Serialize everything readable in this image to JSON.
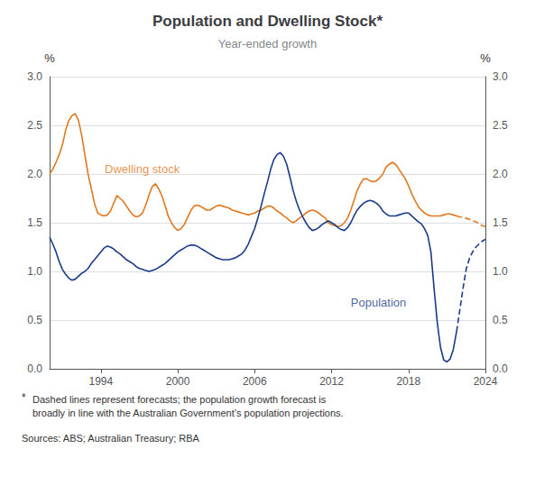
{
  "chart_data": {
    "type": "line",
    "title": "Population and Dwelling Stock*",
    "subtitle": "Year-ended growth",
    "ylabel": "%",
    "y2label": "%",
    "xlim": [
      1990,
      2024
    ],
    "xticks": [
      1994,
      2000,
      2006,
      2012,
      2018,
      2024
    ],
    "ylim": [
      0.0,
      3.0
    ],
    "yticks": [
      {
        "value": 0.0,
        "label": "0.0"
      },
      0.5,
      {
        "value": 1.0,
        "label": "1.0"
      },
      1.5,
      {
        "value": 2.0,
        "label": "2.0"
      },
      2.5,
      {
        "value": 3.0,
        "label": "3.0"
      }
    ],
    "y2lim": [
      0.0,
      3.0
    ],
    "y2ticks": [
      {
        "value": 0.0,
        "label": "0.0"
      },
      0.5,
      {
        "value": 1.0,
        "label": "1.0"
      },
      1.5,
      {
        "value": 2.0,
        "label": "2.0"
      },
      2.5,
      {
        "value": 3.0,
        "label": "3.0"
      }
    ],
    "grid": true,
    "series": [
      {
        "color": "#E07820",
        "line_style": "solid",
        "x": [
          1990,
          1990.25,
          1990.5,
          1990.75,
          1991,
          1991.25,
          1991.5,
          1991.75,
          1992,
          1992.25,
          1992.5,
          1992.75,
          1993,
          1993.25,
          1993.5,
          1993.75,
          1994,
          1994.25,
          1994.5,
          1994.75,
          1995,
          1995.25,
          1995.5,
          1995.75,
          1996,
          1996.25,
          1996.5,
          1996.75,
          1997,
          1997.25,
          1997.5,
          1997.75,
          1998,
          1998.25,
          1998.5,
          1998.75,
          1999,
          1999.25,
          1999.5,
          1999.75,
          2000,
          2000.25,
          2000.5,
          2000.75,
          2001,
          2001.25,
          2001.5,
          2001.75,
          2002,
          2002.25,
          2002.5,
          2002.75,
          2003,
          2003.25,
          2003.5,
          2003.75,
          2004,
          2004.25,
          2004.5,
          2004.75,
          2005,
          2005.25,
          2005.5,
          2005.75,
          2006,
          2006.25,
          2006.5,
          2006.75,
          2007,
          2007.25,
          2007.5,
          2007.75,
          2008,
          2008.25,
          2008.5,
          2008.75,
          2009,
          2009.25,
          2009.5,
          2009.75,
          2010,
          2010.25,
          2010.5,
          2010.75,
          2011,
          2011.25,
          2011.5,
          2011.75,
          2012,
          2012.25,
          2012.5,
          2012.75,
          2013,
          2013.25,
          2013.5,
          2013.75,
          2014,
          2014.25,
          2014.5,
          2014.75,
          2015,
          2015.25,
          2015.5,
          2015.75,
          2016,
          2016.25,
          2016.5,
          2016.75,
          2017,
          2017.25,
          2017.5,
          2017.75,
          2018,
          2018.25,
          2018.5,
          2018.75,
          2019,
          2019.25,
          2019.5,
          2019.75,
          2020,
          2020.25,
          2020.5,
          2020.75,
          2021,
          2021.25,
          2021.5,
          2021.75
        ],
        "values": [
          2.0,
          2.05,
          2.12,
          2.2,
          2.3,
          2.45,
          2.55,
          2.6,
          2.62,
          2.55,
          2.4,
          2.2,
          2.0,
          1.85,
          1.7,
          1.6,
          1.58,
          1.57,
          1.58,
          1.62,
          1.7,
          1.78,
          1.75,
          1.72,
          1.67,
          1.62,
          1.58,
          1.56,
          1.57,
          1.6,
          1.68,
          1.78,
          1.87,
          1.9,
          1.85,
          1.78,
          1.68,
          1.57,
          1.5,
          1.45,
          1.42,
          1.44,
          1.48,
          1.55,
          1.62,
          1.67,
          1.68,
          1.67,
          1.65,
          1.63,
          1.63,
          1.65,
          1.67,
          1.68,
          1.67,
          1.66,
          1.65,
          1.63,
          1.62,
          1.61,
          1.6,
          1.59,
          1.58,
          1.59,
          1.6,
          1.62,
          1.63,
          1.65,
          1.67,
          1.67,
          1.65,
          1.62,
          1.6,
          1.57,
          1.55,
          1.52,
          1.5,
          1.52,
          1.55,
          1.57,
          1.6,
          1.62,
          1.63,
          1.62,
          1.6,
          1.57,
          1.55,
          1.5,
          1.48,
          1.47,
          1.46,
          1.47,
          1.5,
          1.55,
          1.63,
          1.73,
          1.83,
          1.9,
          1.95,
          1.95,
          1.93,
          1.92,
          1.93,
          1.96,
          2.0,
          2.07,
          2.1,
          2.12,
          2.1,
          2.05,
          2.0,
          1.95,
          1.88,
          1.8,
          1.73,
          1.67,
          1.63,
          1.6,
          1.58,
          1.57,
          1.57,
          1.57,
          1.57,
          1.58,
          1.59,
          1.59,
          1.58,
          1.57
        ]
      },
      {
        "color": "#E07820",
        "line_style": "dashed",
        "x": [
          2021.75,
          2022,
          2022.25,
          2022.5,
          2022.75,
          2023,
          2023.25,
          2023.5,
          2023.75,
          2024
        ],
        "values": [
          1.57,
          1.56,
          1.555,
          1.545,
          1.535,
          1.52,
          1.51,
          1.49,
          1.47,
          1.46
        ]
      },
      {
        "color": "#1A3A8A",
        "line_style": "solid",
        "x": [
          1990,
          1990.25,
          1990.5,
          1990.75,
          1991,
          1991.25,
          1991.5,
          1991.75,
          1992,
          1992.25,
          1992.5,
          1992.75,
          1993,
          1993.25,
          1993.5,
          1993.75,
          1994,
          1994.25,
          1994.5,
          1994.75,
          1995,
          1995.25,
          1995.5,
          1995.75,
          1996,
          1996.25,
          1996.5,
          1996.75,
          1997,
          1997.25,
          1997.5,
          1997.75,
          1998,
          1998.25,
          1998.5,
          1998.75,
          1999,
          1999.25,
          1999.5,
          1999.75,
          2000,
          2000.25,
          2000.5,
          2000.75,
          2001,
          2001.25,
          2001.5,
          2001.75,
          2002,
          2002.25,
          2002.5,
          2002.75,
          2003,
          2003.25,
          2003.5,
          2003.75,
          2004,
          2004.25,
          2004.5,
          2004.75,
          2005,
          2005.25,
          2005.5,
          2005.75,
          2006,
          2006.25,
          2006.5,
          2006.75,
          2007,
          2007.25,
          2007.5,
          2007.75,
          2008,
          2008.25,
          2008.5,
          2008.75,
          2009,
          2009.25,
          2009.5,
          2009.75,
          2010,
          2010.25,
          2010.5,
          2010.75,
          2011,
          2011.25,
          2011.5,
          2011.75,
          2012,
          2012.25,
          2012.5,
          2012.75,
          2013,
          2013.25,
          2013.5,
          2013.75,
          2014,
          2014.25,
          2014.5,
          2014.75,
          2015,
          2015.25,
          2015.5,
          2015.75,
          2016,
          2016.25,
          2016.5,
          2016.75,
          2017,
          2017.25,
          2017.5,
          2017.75,
          2018,
          2018.25,
          2018.5,
          2018.75,
          2019,
          2019.25,
          2019.5,
          2019.75,
          2020,
          2020.25,
          2020.5,
          2020.75,
          2021,
          2021.25,
          2021.5,
          2021.75
        ],
        "values": [
          1.35,
          1.28,
          1.2,
          1.1,
          1.02,
          0.97,
          0.93,
          0.91,
          0.92,
          0.95,
          0.98,
          1.0,
          1.03,
          1.08,
          1.12,
          1.16,
          1.2,
          1.24,
          1.26,
          1.25,
          1.23,
          1.2,
          1.18,
          1.15,
          1.12,
          1.1,
          1.08,
          1.05,
          1.03,
          1.02,
          1.01,
          1.0,
          1.01,
          1.02,
          1.04,
          1.06,
          1.08,
          1.11,
          1.14,
          1.17,
          1.2,
          1.22,
          1.24,
          1.26,
          1.27,
          1.27,
          1.26,
          1.24,
          1.22,
          1.2,
          1.18,
          1.16,
          1.14,
          1.13,
          1.12,
          1.12,
          1.12,
          1.13,
          1.14,
          1.16,
          1.18,
          1.22,
          1.28,
          1.36,
          1.44,
          1.55,
          1.67,
          1.8,
          1.92,
          2.05,
          2.15,
          2.2,
          2.22,
          2.18,
          2.1,
          1.97,
          1.83,
          1.72,
          1.63,
          1.56,
          1.5,
          1.45,
          1.42,
          1.43,
          1.45,
          1.48,
          1.5,
          1.52,
          1.5,
          1.48,
          1.45,
          1.43,
          1.42,
          1.45,
          1.5,
          1.57,
          1.63,
          1.67,
          1.7,
          1.72,
          1.73,
          1.72,
          1.7,
          1.67,
          1.62,
          1.59,
          1.57,
          1.57,
          1.57,
          1.58,
          1.59,
          1.6,
          1.6,
          1.57,
          1.54,
          1.51,
          1.49,
          1.44,
          1.37,
          1.2,
          0.82,
          0.47,
          0.22,
          0.09,
          0.07,
          0.1,
          0.2,
          0.38
        ]
      },
      {
        "color": "#1A3A8A",
        "line_style": "dashed",
        "x": [
          2021.75,
          2022,
          2022.25,
          2022.5,
          2022.75,
          2023,
          2023.25,
          2023.5,
          2023.75,
          2024
        ],
        "values": [
          0.38,
          0.6,
          0.82,
          1.02,
          1.13,
          1.2,
          1.25,
          1.28,
          1.31,
          1.33
        ]
      }
    ],
    "annotations": [
      {
        "text": "Dwelling stock",
        "x": 1994.3,
        "y": 2.05,
        "color": "#E07820"
      },
      {
        "text": "Population",
        "x": 2013.5,
        "y": 0.68,
        "color": "#1A3A8A"
      }
    ],
    "footnote_star": "*",
    "footnote_text": "Dashed lines represent forecasts; the population growth forecast is\nbroadly in line with the Australian Government’s population projections.",
    "sources": "Sources: ABS; Australian Treasury; RBA"
  }
}
